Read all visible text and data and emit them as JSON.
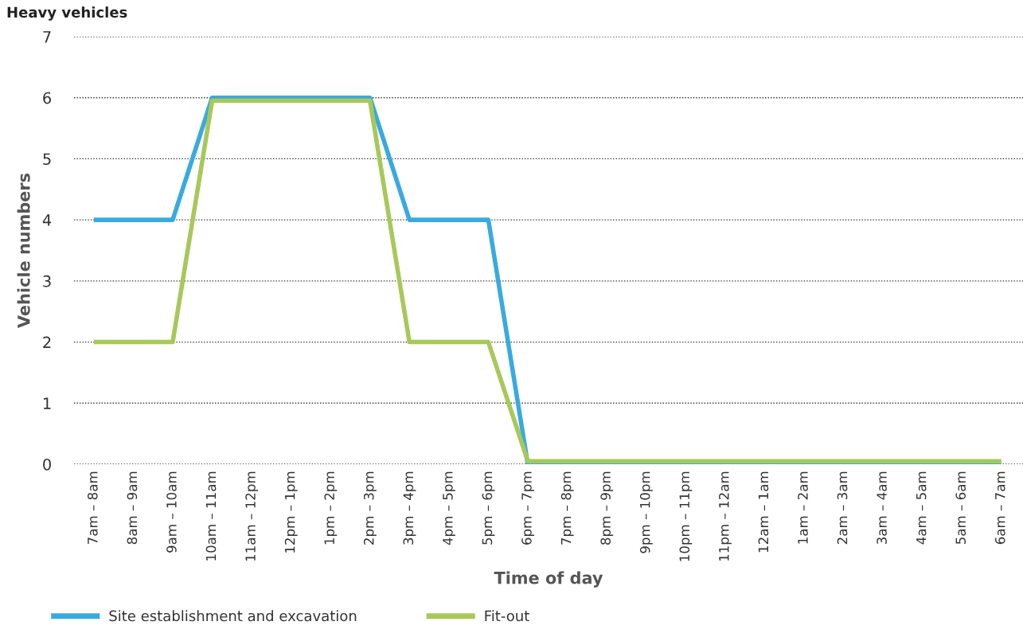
{
  "chart_data": {
    "type": "line",
    "title": "Heavy vehicles",
    "xlabel": "Time of day",
    "ylabel": "Vehicle numbers",
    "categories": [
      "7am – 8am",
      "8am – 9am",
      "9am – 10am",
      "10am – 11am",
      "11am – 12pm",
      "12pm – 1pm",
      "1pm – 2pm",
      "2pm – 3pm",
      "3pm – 4pm",
      "4pm – 5pm",
      "5pm – 6pm",
      "6pm – 7pm",
      "7pm – 8pm",
      "8pm – 9pm",
      "9pm – 10pm",
      "10pm – 11pm",
      "11pm – 12am",
      "12am – 1am",
      "1am – 2am",
      "2am – 3am",
      "3am – 4am",
      "4am – 5am",
      "5am – 6am",
      "6am – 7am"
    ],
    "series": [
      {
        "name": "Site establishment and excavation",
        "color": "#3aaade",
        "values": [
          4,
          4,
          4,
          6,
          6,
          6,
          6,
          6,
          4,
          4,
          4,
          0,
          0,
          0,
          0,
          0,
          0,
          0,
          0,
          0,
          0,
          0,
          0,
          0
        ]
      },
      {
        "name": "Fit-out",
        "color": "#a8c85a",
        "values": [
          2,
          2,
          2,
          5.95,
          5.95,
          5.95,
          5.95,
          5.95,
          2,
          2,
          2,
          0.05,
          0.05,
          0.05,
          0.05,
          0.05,
          0.05,
          0.05,
          0.05,
          0.05,
          0.05,
          0.05,
          0.05,
          0.05
        ]
      }
    ],
    "ylim": [
      0,
      7
    ],
    "yticks": [
      0,
      1,
      2,
      3,
      4,
      5,
      6,
      7
    ],
    "grid": "y",
    "legend": "bottom",
    "marker": "none",
    "line_style": "solid"
  }
}
